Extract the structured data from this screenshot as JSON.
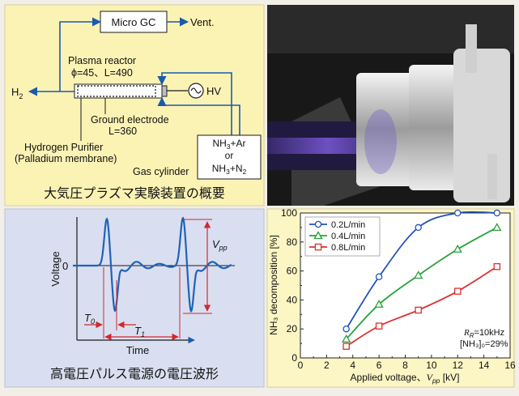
{
  "colors": {
    "apparatus_bg": "#fbf3b4",
    "waveform_bg": "#d9dff0",
    "chart_bg": "#fcf6c4",
    "frame": "#f2efe8",
    "accent_blue": "#1a5bb0",
    "accent_red": "#d0282e",
    "series_blue": "#2152b8",
    "series_green": "#26a23a",
    "series_red": "#d8322c"
  },
  "apparatus": {
    "micro_gc": "Micro GC",
    "vent": "Vent.",
    "h2": "H",
    "h2_sub": "2",
    "reactor_title": "Plasma reactor",
    "reactor_dims": "ϕ=45、L=490",
    "hv": "HV",
    "ground_title": "Ground electrode",
    "ground_length": "L=360",
    "purifier_title": "Hydrogen Purifier",
    "purifier_detail": "(Palladium membrane)",
    "gas_line1_a": "NH",
    "gas_line1_sub": "3",
    "gas_line1_b": "+Ar",
    "gas_or": "or",
    "gas_line2_a": "NH",
    "gas_line2_sub": "3",
    "gas_line2_b": "+N",
    "gas_line2_sub2": "2",
    "gas_cylinder": "Gas cylinder",
    "caption": "大気圧プラズマ実験装置の概要",
    "photo_icon": "plasma-reactor-photo"
  },
  "waveform": {
    "ylabel": "Voltage",
    "zero": "0",
    "vpp": "V",
    "vpp_sub": "pp",
    "t0": "T",
    "t0_sub": "0",
    "t1": "T",
    "t1_sub": "1",
    "xlabel": "Time",
    "caption": "高電圧パルス電源の電圧波形"
  },
  "chart_data": {
    "type": "line",
    "xlabel_main": "Applied voltage、",
    "xlabel_var": "V",
    "xlabel_sub": "pp",
    "xlabel_unit": " [kV]",
    "ylabel": "NH₃ decomposition [%]",
    "xlim": [
      0,
      16
    ],
    "ylim": [
      0,
      100
    ],
    "xticks": [
      0,
      2,
      4,
      6,
      8,
      10,
      12,
      14,
      16
    ],
    "yticks": [
      0,
      20,
      40,
      60,
      80,
      100
    ],
    "grid": false,
    "legend": "top-left",
    "series": [
      {
        "name": "0.2L/min",
        "marker": "circle",
        "color": "#2152b8",
        "x": [
          3.5,
          6,
          9,
          12,
          15
        ],
        "y": [
          20,
          56,
          90,
          100,
          100
        ]
      },
      {
        "name": "0.4L/min",
        "marker": "triangle",
        "color": "#26a23a",
        "x": [
          3.5,
          6,
          9,
          12,
          15
        ],
        "y": [
          13,
          37,
          57,
          75,
          90
        ]
      },
      {
        "name": "0.8L/min",
        "marker": "square",
        "color": "#d8322c",
        "x": [
          3.5,
          6,
          9,
          12,
          15
        ],
        "y": [
          8,
          22,
          33,
          46,
          63
        ]
      }
    ],
    "annotation_freq_a": "R",
    "annotation_freq_sub": "R",
    "annotation_freq_b": "=10kHz",
    "annotation_conc": "[NH₃]₀=29%"
  }
}
